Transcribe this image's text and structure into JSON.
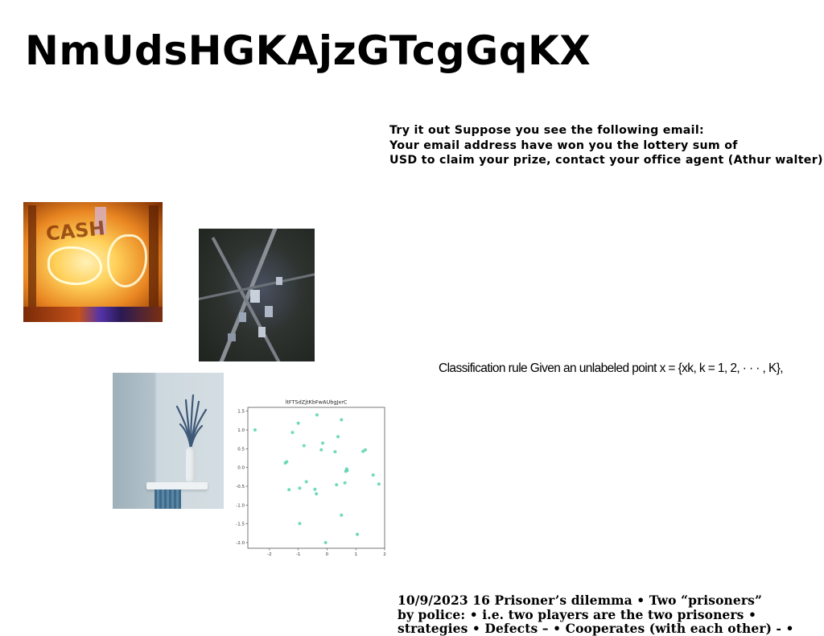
{
  "page": {
    "title": "NmUdsHGKAjzGTcgGqKX"
  },
  "email_block": {
    "lines": [
      "Try it out Suppose you see the following email:",
      "Your email address have won you the lottery sum of",
      "USD to claim your prize, contact your office agent (Athur walter)"
    ]
  },
  "classification_text": "Classification rule Given an unlabeled point x = {xk, k = 1, 2, · · · , K},",
  "prisoner_block": {
    "lines": [
      "10/9/2023 16 Prisoner’s dilemma • Two “prisoners”",
      "by police: • i.e. two players are the two prisoners •",
      "strategies • Defects – • Cooperates (with each other) - •"
    ]
  },
  "images": [
    {
      "name": "graffiti-photo",
      "tag_text": "CASH"
    },
    {
      "name": "city-aerial-photo"
    },
    {
      "name": "vase-on-pedestal-photo"
    }
  ],
  "chart_data": {
    "type": "scatter",
    "title": "ltFTSdZjtKbFwAUbgJxrC",
    "xlabel": "",
    "ylabel": "",
    "xlim": [
      -2.75,
      2.0
    ],
    "ylim": [
      -2.15,
      1.6
    ],
    "xticks": [
      -2,
      -1,
      0,
      1,
      2
    ],
    "yticks": [
      1.5,
      1.0,
      0.5,
      0.0,
      -0.5,
      -1.0,
      -1.5,
      -2.0
    ],
    "xtick_labels": [
      "-2",
      "-1",
      "0",
      "1",
      "2"
    ],
    "ytick_labels": [
      "1.5",
      "1.0",
      "0.5",
      "0.0",
      "-0.5",
      "-1.0",
      "-1.5",
      "-2.0"
    ],
    "grid": false,
    "marker_color": "#57d4b0",
    "points": [
      {
        "x": -2.5,
        "y": 1.0
      },
      {
        "x": -1.0,
        "y": 1.18
      },
      {
        "x": -1.2,
        "y": 0.93
      },
      {
        "x": -0.35,
        "y": 1.4
      },
      {
        "x": 0.5,
        "y": 1.27
      },
      {
        "x": 0.38,
        "y": 0.82
      },
      {
        "x": -0.15,
        "y": 0.65
      },
      {
        "x": -0.8,
        "y": 0.58
      },
      {
        "x": -0.2,
        "y": 0.47
      },
      {
        "x": 0.28,
        "y": 0.42
      },
      {
        "x": 1.25,
        "y": 0.43
      },
      {
        "x": 1.33,
        "y": 0.47
      },
      {
        "x": -1.45,
        "y": 0.12
      },
      {
        "x": -1.4,
        "y": 0.15
      },
      {
        "x": 0.68,
        "y": -0.04
      },
      {
        "x": 0.7,
        "y": -0.08
      },
      {
        "x": 0.65,
        "y": -0.1
      },
      {
        "x": 1.6,
        "y": -0.2
      },
      {
        "x": 1.8,
        "y": -0.44
      },
      {
        "x": 0.62,
        "y": -0.41
      },
      {
        "x": 0.33,
        "y": -0.46
      },
      {
        "x": -0.72,
        "y": -0.38
      },
      {
        "x": -1.32,
        "y": -0.59
      },
      {
        "x": -0.95,
        "y": -0.55
      },
      {
        "x": -0.42,
        "y": -0.58
      },
      {
        "x": -0.37,
        "y": -0.7
      },
      {
        "x": 0.5,
        "y": -1.27
      },
      {
        "x": -0.95,
        "y": -1.49
      },
      {
        "x": 1.05,
        "y": -1.78
      },
      {
        "x": -0.05,
        "y": -2.0
      }
    ]
  }
}
